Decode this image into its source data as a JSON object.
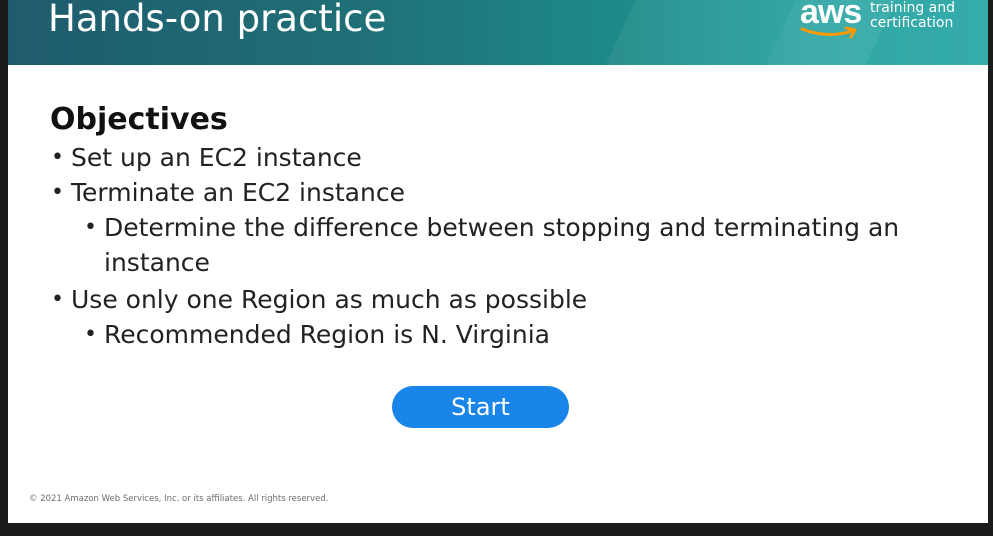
{
  "slide": {
    "title": "Hands-on practice",
    "logo": {
      "wordmark": "aws",
      "line1": "training and",
      "line2": "certification"
    },
    "heading": "Objectives",
    "bullets": [
      "Set up an EC2 instance",
      "Terminate an EC2 instance",
      "Determine the difference between stopping and terminating an instance",
      "Use only one Region as much as possible",
      "Recommended Region is N. Virginia"
    ],
    "start_label": "Start",
    "copyright": "© 2021 Amazon Web Services, Inc. or its affiliates. All rights reserved."
  },
  "colors": {
    "header_gradient_start": "#1f5b6e",
    "header_gradient_end": "#2aa8a7",
    "start_button": "#1a85e8",
    "aws_smile": "#ff9900",
    "outer_background": "#1b1b1b"
  }
}
